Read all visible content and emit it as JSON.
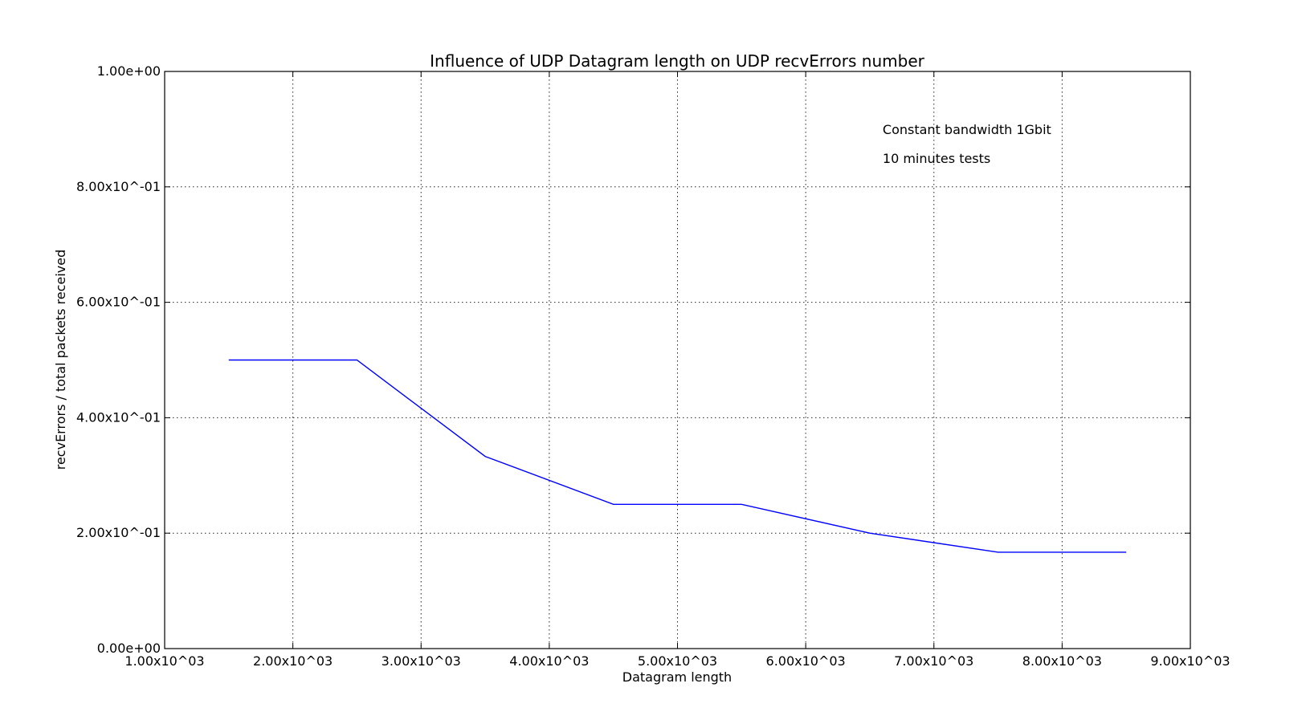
{
  "chart_data": {
    "type": "line",
    "title": "Influence of UDP Datagram length on UDP recvErrors number",
    "xlabel": "Datagram length",
    "ylabel": "recvErrors / total packets received",
    "xlim": [
      1000,
      9000
    ],
    "ylim": [
      0,
      1
    ],
    "grid": true,
    "x_ticks": [
      {
        "value": 1000,
        "label": "1.00x10^03"
      },
      {
        "value": 2000,
        "label": "2.00x10^03"
      },
      {
        "value": 3000,
        "label": "3.00x10^03"
      },
      {
        "value": 4000,
        "label": "4.00x10^03"
      },
      {
        "value": 5000,
        "label": "5.00x10^03"
      },
      {
        "value": 6000,
        "label": "6.00x10^03"
      },
      {
        "value": 7000,
        "label": "7.00x10^03"
      },
      {
        "value": 8000,
        "label": "8.00x10^03"
      },
      {
        "value": 9000,
        "label": "9.00x10^03"
      }
    ],
    "y_ticks": [
      {
        "value": 0,
        "label": "0.00e+00"
      },
      {
        "value": 0.2,
        "label": "2.00x10^-01"
      },
      {
        "value": 0.4,
        "label": "4.00x10^-01"
      },
      {
        "value": 0.6,
        "label": "6.00x10^-01"
      },
      {
        "value": 0.8,
        "label": "8.00x10^-01"
      },
      {
        "value": 1.0,
        "label": "1.00e+00"
      }
    ],
    "series": [
      {
        "color": "#0000ff",
        "x": [
          1500,
          2500,
          3500,
          4500,
          5500,
          6500,
          7500,
          8500
        ],
        "y": [
          0.5,
          0.5,
          0.333,
          0.25,
          0.25,
          0.2,
          0.167,
          0.167
        ]
      }
    ],
    "annotations": [
      {
        "text": "Constant bandwidth 1Gbit",
        "x": 6600,
        "y": 0.9
      },
      {
        "text": "10 minutes tests",
        "x": 6600,
        "y": 0.85
      }
    ]
  }
}
